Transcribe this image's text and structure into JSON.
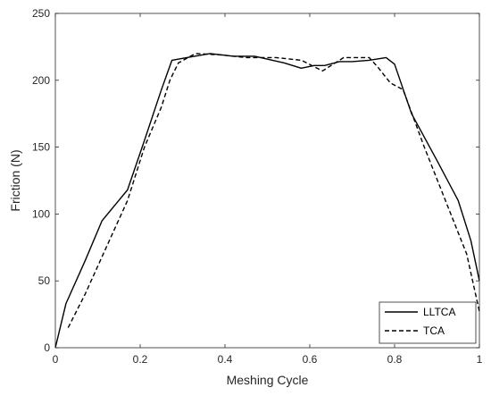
{
  "chart_data": {
    "type": "line",
    "title": "",
    "xlabel": "Meshing Cycle",
    "ylabel": "Friction (N)",
    "xlim": [
      0,
      1
    ],
    "ylim": [
      0,
      250
    ],
    "xticks": [
      0,
      0.2,
      0.4,
      0.6,
      0.8,
      1
    ],
    "xtick_labels": [
      "0",
      "0.2",
      "0.4",
      "0.6",
      "0.8",
      "1"
    ],
    "yticks": [
      0,
      50,
      100,
      150,
      200,
      250
    ],
    "ytick_labels": [
      "0",
      "50",
      "100",
      "150",
      "200",
      "250"
    ],
    "grid": false,
    "legend_position": "bottom-right",
    "colors": {
      "line": "#000000",
      "axis": "#262626"
    },
    "series": [
      {
        "name": "LLTCA",
        "style": "solid",
        "x": [
          0,
          0.025,
          0.07,
          0.11,
          0.17,
          0.21,
          0.25,
          0.275,
          0.31,
          0.365,
          0.42,
          0.47,
          0.54,
          0.58,
          0.61,
          0.635,
          0.67,
          0.7,
          0.74,
          0.78,
          0.8,
          0.84,
          0.9,
          0.95,
          0.98,
          1.0
        ],
        "y": [
          0,
          33,
          65,
          95,
          118,
          155,
          193,
          215,
          217,
          220,
          218,
          218,
          213,
          209,
          211,
          211,
          214,
          214,
          215,
          217,
          212,
          175,
          140,
          110,
          80,
          50
        ]
      },
      {
        "name": "TCA",
        "style": "dashed",
        "x": [
          0.03,
          0.07,
          0.12,
          0.17,
          0.21,
          0.25,
          0.27,
          0.29,
          0.33,
          0.39,
          0.45,
          0.52,
          0.58,
          0.63,
          0.68,
          0.74,
          0.76,
          0.79,
          0.82,
          0.87,
          0.92,
          0.97,
          1.0
        ],
        "y": [
          15,
          40,
          75,
          110,
          150,
          180,
          200,
          213,
          220,
          219,
          217,
          217,
          215,
          207,
          217,
          217,
          210,
          198,
          193,
          150,
          110,
          70,
          27
        ]
      }
    ]
  }
}
